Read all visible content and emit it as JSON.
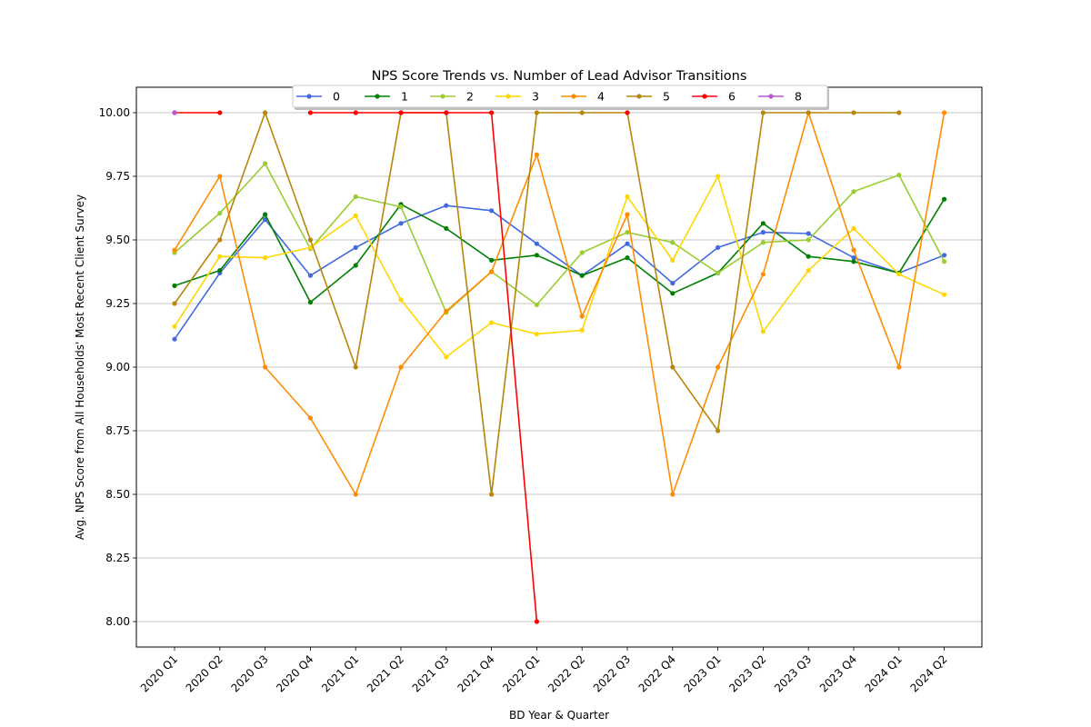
{
  "chart_data": {
    "type": "line",
    "title": "NPS Score Trends vs. Number of Lead Advisor Transitions",
    "xlabel": "BD Year & Quarter",
    "ylabel": "Avg. NPS Score from All Households' Most Recent Client Survey",
    "categories": [
      "2020 Q1",
      "2020 Q2",
      "2020 Q3",
      "2020 Q4",
      "2021 Q1",
      "2021 Q2",
      "2021 Q3",
      "2021 Q4",
      "2022 Q1",
      "2022 Q2",
      "2022 Q3",
      "2022 Q4",
      "2023 Q1",
      "2023 Q2",
      "2023 Q3",
      "2023 Q4",
      "2024 Q1",
      "2024 Q2"
    ],
    "ylim": [
      7.9,
      10.1
    ],
    "yticks": [
      "8.00",
      "8.25",
      "8.50",
      "8.75",
      "9.00",
      "9.25",
      "9.50",
      "9.75",
      "10.00"
    ],
    "grid": "horizontal",
    "legend_position": "top-center",
    "series": [
      {
        "name": "0",
        "color": "#4169e1",
        "values": [
          9.11,
          9.37,
          9.58,
          9.36,
          9.47,
          9.565,
          9.635,
          9.615,
          9.485,
          9.36,
          9.485,
          9.33,
          9.47,
          9.53,
          9.525,
          9.43,
          9.37,
          9.44
        ]
      },
      {
        "name": "1",
        "color": "#008000",
        "values": [
          9.32,
          9.38,
          9.6,
          9.255,
          9.4,
          9.64,
          9.545,
          9.42,
          9.44,
          9.36,
          9.43,
          9.29,
          9.37,
          9.565,
          9.435,
          9.415,
          9.37,
          9.66
        ]
      },
      {
        "name": "2",
        "color": "#9acd32",
        "values": [
          9.45,
          9.605,
          9.8,
          9.465,
          9.67,
          9.63,
          9.215,
          9.375,
          9.245,
          9.45,
          9.53,
          9.49,
          9.37,
          9.49,
          9.5,
          9.69,
          9.755,
          9.415
        ]
      },
      {
        "name": "3",
        "color": "#ffd700",
        "values": [
          9.16,
          9.435,
          9.43,
          9.47,
          9.595,
          9.265,
          9.04,
          9.175,
          9.13,
          9.145,
          9.67,
          9.42,
          9.75,
          9.14,
          9.38,
          9.545,
          9.365,
          9.285
        ]
      },
      {
        "name": "4",
        "color": "#ff8c00",
        "values": [
          9.46,
          9.75,
          9.0,
          8.8,
          8.5,
          9.0,
          9.22,
          9.375,
          9.835,
          9.2,
          9.6,
          8.5,
          9.0,
          9.365,
          10.0,
          9.46,
          9.0,
          10.0
        ]
      },
      {
        "name": "5",
        "color": "#b8860b",
        "values": [
          9.25,
          9.5,
          10.0,
          9.5,
          9.0,
          10.0,
          10.0,
          8.5,
          10.0,
          10.0,
          10.0,
          9.0,
          8.75,
          10.0,
          10.0,
          10.0,
          10.0,
          null
        ]
      },
      {
        "name": "6",
        "color": "#ff0000",
        "values": [
          10.0,
          10.0,
          null,
          10.0,
          10.0,
          10.0,
          10.0,
          10.0,
          8.0,
          null,
          10.0,
          null,
          null,
          null,
          null,
          null,
          null,
          null
        ]
      },
      {
        "name": "8",
        "color": "#ba55d3",
        "values": [
          10.0,
          null,
          null,
          null,
          null,
          null,
          null,
          null,
          null,
          null,
          null,
          null,
          null,
          null,
          null,
          null,
          null,
          null
        ]
      }
    ]
  }
}
